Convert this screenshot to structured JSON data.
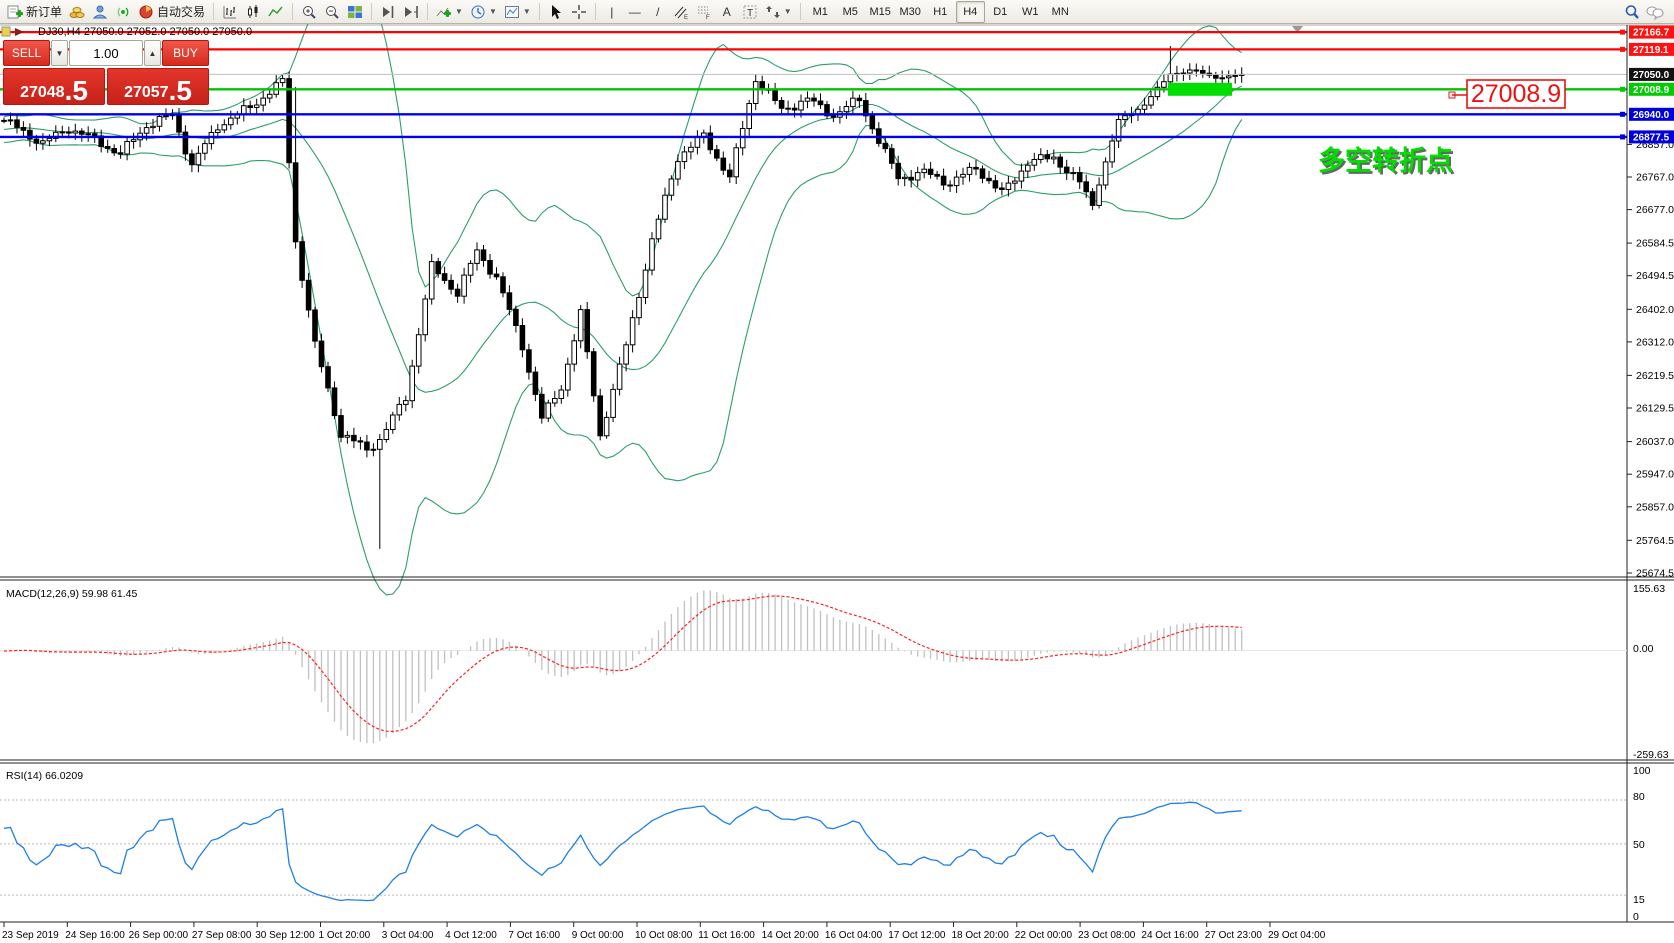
{
  "toolbar": {
    "new_order_label": "新订单",
    "autotrade_label": "自动交易",
    "timeframes": [
      "M1",
      "M5",
      "M15",
      "M30",
      "H1",
      "H4",
      "D1",
      "W1",
      "MN"
    ],
    "active_timeframe": "H4"
  },
  "symbol_header": {
    "text": "DJ30,H4  27050.0 27052.0 27050.0 27050.0"
  },
  "trade_panel": {
    "sell_label": "SELL",
    "buy_label": "BUY",
    "volume": "1.00",
    "sell_price_main": "27048",
    "sell_price_big": ".5",
    "buy_price_main": "27057",
    "buy_price_big": ".5"
  },
  "annotation": {
    "callout_price": "27008.9",
    "note_text": "多空转折点",
    "note_color": "#00dd00",
    "callout_color": "#ee1111"
  },
  "chart_data": {
    "type": "candlestick",
    "symbol": "DJ30",
    "timeframe": "H4",
    "ohlc_header": {
      "open": "27050.0",
      "high": "27052.0",
      "low": "27050.0",
      "close": "27050.0"
    },
    "y_axis_ticks": [
      "26857.0",
      "26767.0",
      "26677.0",
      "26584.5",
      "26494.5",
      "26402.0",
      "26312.0",
      "26219.5",
      "26129.5",
      "26037.0",
      "25947.0",
      "25857.0",
      "25764.5",
      "25674.5"
    ],
    "price_tags": [
      {
        "price": "27166.7",
        "value": 27166.7,
        "color": "#ff1111",
        "text": "#ffffff"
      },
      {
        "price": "27119.1",
        "value": 27119.1,
        "color": "#ff1111",
        "text": "#ffffff"
      },
      {
        "price": "27050.0",
        "value": 27050.0,
        "color": "#111111",
        "text": "#ffffff"
      },
      {
        "price": "27008.9",
        "value": 27008.9,
        "color": "#00cc00",
        "text": "#ffffff"
      },
      {
        "price": "26940.0",
        "value": 26940.0,
        "color": "#0000dd",
        "text": "#ffffff"
      },
      {
        "price": "26877.5",
        "value": 26877.5,
        "color": "#0000dd",
        "text": "#ffffff"
      }
    ],
    "h_lines": [
      {
        "value": 27166.7,
        "color": "#ff0000",
        "width": 2.2,
        "role": "resistance"
      },
      {
        "value": 27119.1,
        "color": "#ff0000",
        "width": 2.2,
        "role": "resistance"
      },
      {
        "value": 27050.0,
        "color": "#c0c0c0",
        "width": 1,
        "role": "last-price"
      },
      {
        "value": 27008.9,
        "color": "#00c400",
        "width": 2.4,
        "role": "pivot"
      },
      {
        "value": 26940.0,
        "color": "#0000ee",
        "width": 2.4,
        "role": "support"
      },
      {
        "value": 26877.5,
        "color": "#0000ee",
        "width": 2.4,
        "role": "support"
      }
    ],
    "x_labels": [
      "23 Sep 2019",
      "24 Sep 16:00",
      "26 Sep 00:00",
      "27 Sep 08:00",
      "30 Sep 12:00",
      "1 Oct 20:00",
      "3 Oct 04:00",
      "4 Oct 12:00",
      "7 Oct 16:00",
      "9 Oct 00:00",
      "10 Oct 08:00",
      "11 Oct 16:00",
      "14 Oct 20:00",
      "16 Oct 04:00",
      "17 Oct 12:00",
      "18 Oct 20:00",
      "22 Oct 00:00",
      "23 Oct 08:00",
      "24 Oct 16:00",
      "27 Oct 23:00",
      "29 Oct 04:00"
    ],
    "candle_count": 192,
    "price_path_anchors": [
      [
        0,
        26923
      ],
      [
        6,
        26860
      ],
      [
        10,
        26902
      ],
      [
        14,
        26870
      ],
      [
        18,
        26830
      ],
      [
        22,
        26910
      ],
      [
        26,
        26937
      ],
      [
        29,
        26800
      ],
      [
        33,
        26908
      ],
      [
        38,
        26960
      ],
      [
        43,
        27030
      ],
      [
        45,
        26590
      ],
      [
        48,
        26303
      ],
      [
        52,
        26058
      ],
      [
        56,
        26015
      ],
      [
        58,
        26043
      ],
      [
        62,
        26159
      ],
      [
        66,
        26519
      ],
      [
        70,
        26447
      ],
      [
        73,
        26562
      ],
      [
        76,
        26490
      ],
      [
        80,
        26302
      ],
      [
        83,
        26100
      ],
      [
        86,
        26187
      ],
      [
        89,
        26389
      ],
      [
        92,
        26055
      ],
      [
        96,
        26302
      ],
      [
        100,
        26590
      ],
      [
        104,
        26822
      ],
      [
        108,
        26880
      ],
      [
        112,
        26765
      ],
      [
        116,
        27039
      ],
      [
        120,
        26952
      ],
      [
        124,
        26981
      ],
      [
        128,
        26937
      ],
      [
        132,
        26981
      ],
      [
        135,
        26866
      ],
      [
        138,
        26765
      ],
      [
        142,
        26779
      ],
      [
        146,
        26750
      ],
      [
        150,
        26793
      ],
      [
        154,
        26721
      ],
      [
        158,
        26808
      ],
      [
        162,
        26822
      ],
      [
        166,
        26750
      ],
      [
        168,
        26692
      ],
      [
        172,
        26923
      ],
      [
        176,
        26966
      ],
      [
        180,
        27053
      ],
      [
        184,
        27059
      ],
      [
        188,
        27039
      ],
      [
        191,
        27050
      ]
    ],
    "wick_overrides": {
      "58": {
        "low": 25741
      },
      "180": {
        "high": 27128
      },
      "45": {
        "high": 27015
      }
    },
    "highlight_zone": {
      "price": 27008.9,
      "color": "#00dd00"
    },
    "indicators": {
      "bollinger": {
        "period": 20,
        "deviation": 2,
        "color": "#2e9e68"
      },
      "macd": {
        "label": "MACD(12,26,9) 59.98 61.45",
        "params": [
          12,
          26,
          9
        ],
        "value": 59.98,
        "signal_value": 61.45,
        "scale_max": "155.63",
        "scale_zero": "0.00",
        "scale_min": "-259.63",
        "histogram_color": "#c0c0c0",
        "signal_color": "#ff2222"
      },
      "rsi": {
        "label": "RSI(14) 66.0209",
        "period": 14,
        "value": 66.0209,
        "scale_labels": [
          "100",
          "80",
          "50",
          "15",
          "0"
        ],
        "level_lines": [
          80,
          50,
          15
        ],
        "line_color": "#1f7fe8"
      }
    }
  }
}
